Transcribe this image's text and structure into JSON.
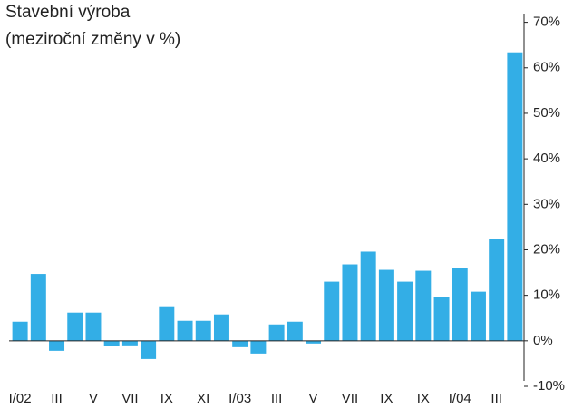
{
  "chart_data": {
    "type": "bar",
    "title": [
      "Stavební výroba",
      "(meziroční změny v %)"
    ],
    "categories": [
      "I/02",
      null,
      "III",
      null,
      "V",
      null,
      "VII",
      null,
      "IX",
      null,
      "XI",
      null,
      "I/03",
      null,
      "III",
      null,
      "V",
      null,
      "VII",
      null,
      "IX",
      null,
      "IX",
      null,
      "I/04",
      null,
      "III",
      null
    ],
    "values": [
      4.2,
      14.7,
      -2.2,
      6.2,
      6.2,
      -1.2,
      -1.0,
      -4.0,
      7.6,
      4.4,
      4.4,
      5.8,
      -1.4,
      -2.8,
      3.6,
      4.2,
      -0.6,
      13.0,
      16.8,
      19.6,
      15.6,
      13.0,
      15.4,
      9.6,
      16.0,
      10.8,
      22.4,
      63.4
    ],
    "color": "#33aee6",
    "ylim": [
      -10,
      70
    ],
    "yticks": [
      {
        "value": -10,
        "label": "-10%"
      },
      {
        "value": 0,
        "label": "0%"
      },
      {
        "value": 10,
        "label": "10%"
      },
      {
        "value": 20,
        "label": "20%"
      },
      {
        "value": 30,
        "label": "30%"
      },
      {
        "value": 40,
        "label": "40%"
      },
      {
        "value": 50,
        "label": "50%"
      },
      {
        "value": 60,
        "label": "60%"
      },
      {
        "value": 70,
        "label": "70%"
      }
    ],
    "y_axis_side": "right"
  }
}
